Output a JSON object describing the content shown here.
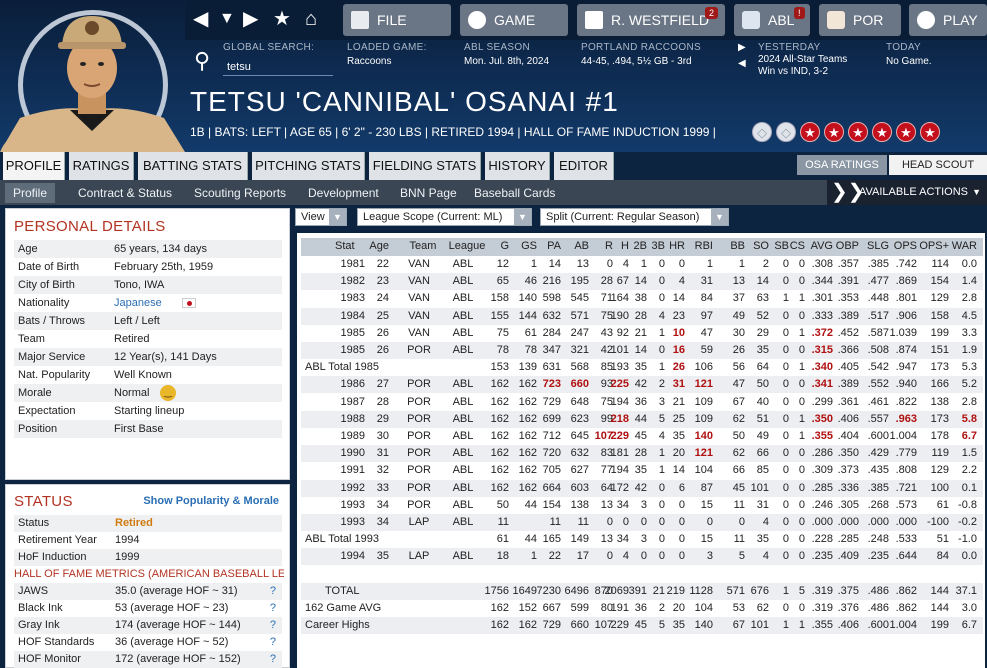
{
  "nav": {
    "file": "FILE",
    "game": "GAME",
    "manager": "R. WESTFIELD",
    "manager_badge": "2",
    "league": "ABL",
    "league_badge": "!",
    "team": "POR",
    "play": "PLAY"
  },
  "header": {
    "global_search_label": "GLOBAL SEARCH:",
    "search_value": "tetsu",
    "loaded_game_label": "LOADED GAME:",
    "loaded_game": "Raccoons",
    "season_label": "ABL SEASON",
    "season_date": "Mon. Jul. 8th, 2024",
    "team_label": "PORTLAND RACCOONS",
    "team_record": "44-45, .494, 5½ GB - 3rd",
    "yesterday_label": "YESTERDAY",
    "yesterday_line1": "2024 All-Star Teams",
    "yesterday_line2": "Win vs IND, 3-2",
    "today_label": "TODAY",
    "today_value": "No Game."
  },
  "player": {
    "name": "TETSU 'CANNIBAL' OSANAI  #1",
    "info": "1B | BATS: LEFT  |  AGE 65  |  6' 2\" - 230 LBS  |  RETIRED 1994  |  HALL OF FAME INDUCTION 1999  |",
    "stars_filled": 6,
    "stars_total": 8
  },
  "tabs": [
    "PROFILE",
    "RATINGS",
    "BATTING STATS",
    "PITCHING STATS",
    "FIELDING STATS",
    "HISTORY",
    "EDITOR"
  ],
  "toggles": [
    "OSA RATINGS",
    "HEAD SCOUT"
  ],
  "subtabs": [
    "Profile",
    "Contract & Status",
    "Scouting Reports",
    "Development",
    "BNN Page",
    "Baseball Cards"
  ],
  "actions_label": "AVAILABLE ACTIONS",
  "personal": {
    "title": "PERSONAL DETAILS",
    "rows": [
      {
        "k": "Age",
        "v": "65 years, 134 days"
      },
      {
        "k": "Date of Birth",
        "v": "February 25th, 1959"
      },
      {
        "k": "City of Birth",
        "v": "Tono, IWA"
      },
      {
        "k": "Nationality",
        "v": "Japanese"
      },
      {
        "k": "Bats / Throws",
        "v": "Left / Left"
      },
      {
        "k": "Team",
        "v": "Retired"
      },
      {
        "k": "Major Service",
        "v": "12 Year(s), 141 Days"
      },
      {
        "k": "Nat. Popularity",
        "v": "Well Known"
      },
      {
        "k": "Morale",
        "v": "Normal"
      },
      {
        "k": "Expectation",
        "v": "Starting lineup"
      },
      {
        "k": "Position",
        "v": "First Base"
      }
    ]
  },
  "status": {
    "title": "STATUS",
    "link": "Show Popularity & Morale",
    "rows": [
      {
        "k": "Status",
        "v": "Retired"
      },
      {
        "k": "Retirement Year",
        "v": "1994"
      },
      {
        "k": "HoF Induction",
        "v": "1999"
      }
    ],
    "hof_heading": "HALL OF FAME METRICS (AMERICAN BASEBALL LEAG",
    "metrics": [
      {
        "k": "JAWS",
        "v": "35.0 (average HOF ~ 31)",
        "q": "?"
      },
      {
        "k": "Black Ink",
        "v": "53 (average HOF ~ 23)",
        "q": "?"
      },
      {
        "k": "Gray Ink",
        "v": "174 (average HOF ~ 144)",
        "q": "?"
      },
      {
        "k": "HOF Standards",
        "v": "36 (average HOF ~ 52)",
        "q": "?"
      },
      {
        "k": "HOF Monitor",
        "v": "172 (average HOF ~ 152)",
        "q": "?"
      }
    ]
  },
  "filters": {
    "view": "View",
    "scope": "League Scope  (Current: ML)",
    "split": "Split  (Current: Regular Season)"
  },
  "stats": {
    "columns": [
      "Stat",
      "Age",
      "Team",
      "League",
      "G",
      "GS",
      "PA",
      "AB",
      "R",
      "H",
      "2B",
      "3B",
      "HR",
      "RBI",
      "BB",
      "SO",
      "SB",
      "CS",
      "AVG",
      "OBP",
      "SLG",
      "OPS",
      "OPS+",
      "WAR"
    ],
    "rows": [
      [
        "1981",
        "22",
        "VAN",
        "ABL",
        "12",
        "1",
        "14",
        "13",
        "0",
        "4",
        "1",
        "0",
        "0",
        "1",
        "1",
        "2",
        "0",
        "0",
        ".308",
        ".357",
        ".385",
        ".742",
        "114",
        "0.0"
      ],
      [
        "1982",
        "23",
        "VAN",
        "ABL",
        "65",
        "46",
        "216",
        "195",
        "28",
        "67",
        "14",
        "0",
        "4",
        "31",
        "13",
        "14",
        "0",
        "0",
        ".344",
        ".391",
        ".477",
        ".869",
        "154",
        "1.4"
      ],
      [
        "1983",
        "24",
        "VAN",
        "ABL",
        "158",
        "140",
        "598",
        "545",
        "71",
        "164",
        "38",
        "0",
        "14",
        "84",
        "37",
        "63",
        "1",
        "1",
        ".301",
        ".353",
        ".448",
        ".801",
        "129",
        "2.8"
      ],
      [
        "1984",
        "25",
        "VAN",
        "ABL",
        "155",
        "144",
        "632",
        "571",
        "75",
        "190",
        "28",
        "4",
        "23",
        "97",
        "49",
        "52",
        "0",
        "0",
        ".333",
        ".389",
        ".517",
        ".906",
        "158",
        "4.5"
      ],
      [
        "1985",
        "26",
        "VAN",
        "ABL",
        "75",
        "61",
        "284",
        "247",
        "43",
        "92",
        "21",
        "1",
        "10",
        "47",
        "30",
        "29",
        "0",
        "1",
        ".372",
        ".452",
        ".587",
        "1.039",
        "199",
        "3.3"
      ],
      [
        "1985",
        "26",
        "POR",
        "ABL",
        "78",
        "78",
        "347",
        "321",
        "42",
        "101",
        "14",
        "0",
        "16",
        "59",
        "26",
        "35",
        "0",
        "0",
        ".315",
        ".366",
        ".508",
        ".874",
        "151",
        "1.9"
      ],
      [
        "ABL Total 1985",
        "",
        "",
        "",
        "153",
        "139",
        "631",
        "568",
        "85",
        "193",
        "35",
        "1",
        "26",
        "106",
        "56",
        "64",
        "0",
        "1",
        ".340",
        ".405",
        ".542",
        ".947",
        "173",
        "5.3"
      ],
      [
        "1986",
        "27",
        "POR",
        "ABL",
        "162",
        "162",
        "723",
        "660",
        "93",
        "225",
        "42",
        "2",
        "31",
        "121",
        "47",
        "50",
        "0",
        "0",
        ".341",
        ".389",
        ".552",
        ".940",
        "166",
        "5.2"
      ],
      [
        "1987",
        "28",
        "POR",
        "ABL",
        "162",
        "162",
        "729",
        "648",
        "75",
        "194",
        "36",
        "3",
        "21",
        "109",
        "67",
        "40",
        "0",
        "0",
        ".299",
        ".361",
        ".461",
        ".822",
        "138",
        "2.8"
      ],
      [
        "1988",
        "29",
        "POR",
        "ABL",
        "162",
        "162",
        "699",
        "623",
        "99",
        "218",
        "44",
        "5",
        "25",
        "109",
        "62",
        "51",
        "0",
        "1",
        ".350",
        ".406",
        ".557",
        ".963",
        "173",
        "5.8"
      ],
      [
        "1989",
        "30",
        "POR",
        "ABL",
        "162",
        "162",
        "712",
        "645",
        "107",
        "229",
        "45",
        "4",
        "35",
        "140",
        "50",
        "49",
        "0",
        "1",
        ".355",
        ".404",
        ".600",
        "1.004",
        "178",
        "6.7"
      ],
      [
        "1990",
        "31",
        "POR",
        "ABL",
        "162",
        "162",
        "720",
        "632",
        "83",
        "181",
        "28",
        "1",
        "20",
        "121",
        "62",
        "66",
        "0",
        "0",
        ".286",
        ".350",
        ".429",
        ".779",
        "119",
        "1.5"
      ],
      [
        "1991",
        "32",
        "POR",
        "ABL",
        "162",
        "162",
        "705",
        "627",
        "77",
        "194",
        "35",
        "1",
        "14",
        "104",
        "66",
        "85",
        "0",
        "0",
        ".309",
        ".373",
        ".435",
        ".808",
        "129",
        "2.2"
      ],
      [
        "1992",
        "33",
        "POR",
        "ABL",
        "162",
        "162",
        "664",
        "603",
        "64",
        "172",
        "42",
        "0",
        "6",
        "87",
        "45",
        "101",
        "0",
        "0",
        ".285",
        ".336",
        ".385",
        ".721",
        "100",
        "0.1"
      ],
      [
        "1993",
        "34",
        "POR",
        "ABL",
        "50",
        "44",
        "154",
        "138",
        "13",
        "34",
        "3",
        "0",
        "0",
        "15",
        "11",
        "31",
        "0",
        "0",
        ".246",
        ".305",
        ".268",
        ".573",
        "61",
        "-0.8"
      ],
      [
        "1993",
        "34",
        "LAP",
        "ABL",
        "11",
        "",
        "11",
        "11",
        "0",
        "0",
        "0",
        "0",
        "0",
        "0",
        "0",
        "4",
        "0",
        "0",
        ".000",
        ".000",
        ".000",
        ".000",
        "-100",
        "-0.2"
      ],
      [
        "ABL Total 1993",
        "",
        "",
        "",
        "61",
        "44",
        "165",
        "149",
        "13",
        "34",
        "3",
        "0",
        "0",
        "15",
        "11",
        "35",
        "0",
        "0",
        ".228",
        ".285",
        ".248",
        ".533",
        "51",
        "-1.0"
      ],
      [
        "1994",
        "35",
        "LAP",
        "ABL",
        "18",
        "1",
        "22",
        "17",
        "0",
        "4",
        "0",
        "0",
        "0",
        "3",
        "5",
        "4",
        "0",
        "0",
        ".235",
        ".409",
        ".235",
        ".644",
        "84",
        "0.0"
      ],
      [
        "",
        "",
        "",
        "",
        "",
        "",
        "",
        "",
        "",
        "",
        "",
        "",
        "",
        "",
        "",
        "",
        "",
        "",
        "",
        "",
        "",
        "",
        "",
        ""
      ],
      [
        "TOTAL",
        "",
        "",
        "",
        "1756",
        "1649",
        "7230",
        "6496",
        "870",
        "2069",
        "391",
        "21",
        "219",
        "1128",
        "571",
        "676",
        "1",
        "5",
        ".319",
        ".375",
        ".486",
        ".862",
        "144",
        "37.1"
      ],
      [
        "162 Game AVG",
        "",
        "",
        "",
        "162",
        "152",
        "667",
        "599",
        "80",
        "191",
        "36",
        "2",
        "20",
        "104",
        "53",
        "62",
        "0",
        "0",
        ".319",
        ".376",
        ".486",
        ".862",
        "144",
        "3.0"
      ],
      [
        "Career Highs",
        "",
        "",
        "",
        "162",
        "162",
        "729",
        "660",
        "107",
        "229",
        "45",
        "5",
        "35",
        "140",
        "67",
        "101",
        "1",
        "1",
        ".355",
        ".406",
        ".600",
        "1.004",
        "199",
        "6.7"
      ]
    ],
    "highlights": [
      [
        4,
        12
      ],
      [
        4,
        18
      ],
      [
        5,
        12
      ],
      [
        5,
        18
      ],
      [
        6,
        12
      ],
      [
        6,
        18
      ],
      [
        7,
        6
      ],
      [
        7,
        7
      ],
      [
        7,
        9
      ],
      [
        7,
        12
      ],
      [
        7,
        13
      ],
      [
        7,
        18
      ],
      [
        9,
        9
      ],
      [
        9,
        18
      ],
      [
        9,
        21
      ],
      [
        9,
        23
      ],
      [
        10,
        8
      ],
      [
        10,
        9
      ],
      [
        10,
        13
      ],
      [
        10,
        18
      ],
      [
        10,
        23
      ],
      [
        11,
        13
      ]
    ]
  }
}
